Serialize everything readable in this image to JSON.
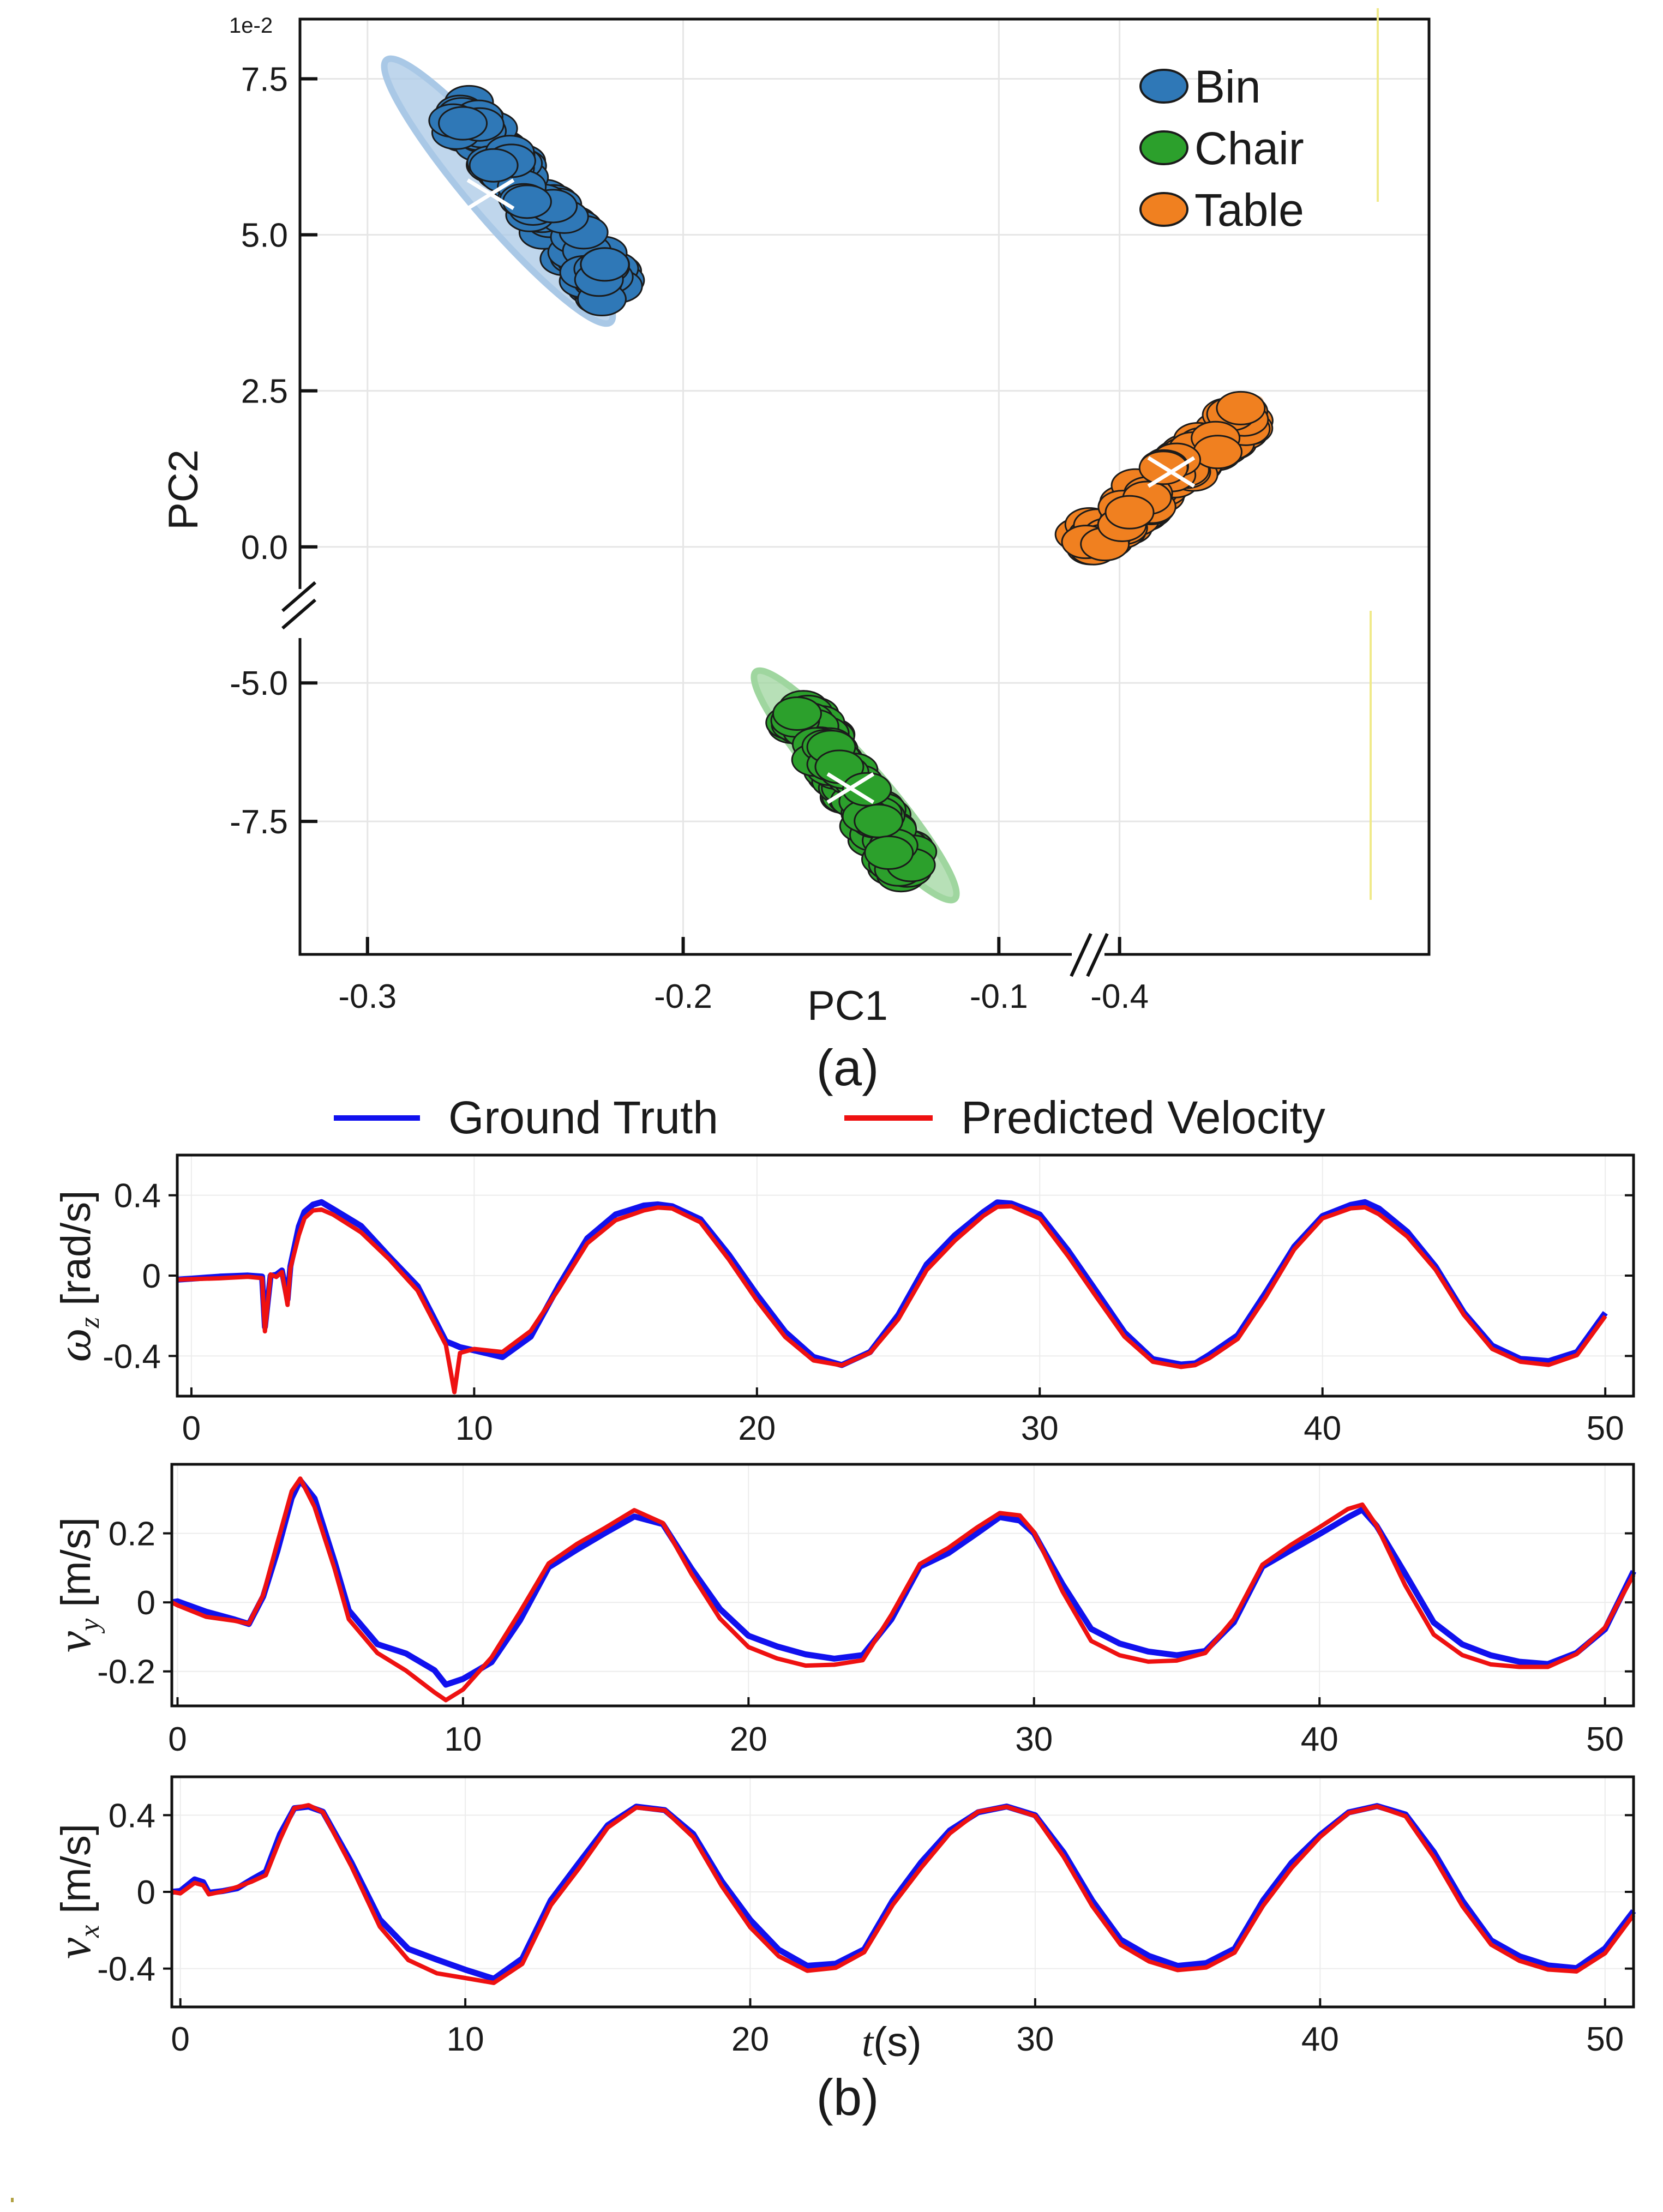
{
  "chart_data": [
    {
      "type": "scatter",
      "panel_label": "(a)",
      "xlabel": "PC1",
      "ylabel": "PC2",
      "y_scale_label": "1e-2",
      "x_axis_break": true,
      "y_axis_break": true,
      "x_segments": [
        {
          "range": [
            -0.32,
            -0.089
          ],
          "ticks": [
            -0.3,
            -0.2,
            -0.1
          ],
          "tick_labels": [
            "-0.3",
            "-0.2",
            "-0.1"
          ]
        },
        {
          "range": [
            -0.41,
            -0.325
          ],
          "ticks": [
            -0.4
          ],
          "tick_labels": [
            "-0.4"
          ]
        }
      ],
      "y_segments": [
        {
          "range": [
            -0.5,
            8.5
          ],
          "ticks": [
            0.0,
            2.5,
            5.0,
            7.5
          ],
          "tick_labels": [
            "0.0",
            "2.5",
            "5.0",
            "7.5"
          ]
        },
        {
          "range": [
            -10.0,
            -3.6
          ],
          "ticks": [
            -7.5,
            -5.0
          ],
          "tick_labels": [
            "-7.5",
            "-5.0"
          ]
        }
      ],
      "grid": true,
      "legend_position": "top-right",
      "series": [
        {
          "name": "Bin",
          "color": "#2f78b7",
          "ellipse_color": "#a9c8e6",
          "x_segment": 0,
          "y_segment": 0,
          "centroid": [
            -0.261,
            5.65
          ],
          "extent_start": [
            -0.272,
            7.0
          ],
          "extent_end": [
            -0.222,
            4.1
          ],
          "ellipse_start": [
            -0.294,
            7.8
          ],
          "ellipse_end": [
            -0.223,
            3.6
          ]
        },
        {
          "name": "Chair",
          "color": "#2ca02c",
          "ellipse_color": "#9fd69f",
          "x_segment": 0,
          "y_segment": 1,
          "centroid": [
            -0.147,
            -6.9
          ],
          "extent_start": [
            -0.164,
            -5.5
          ],
          "extent_end": [
            -0.128,
            -8.4
          ],
          "ellipse_start": [
            -0.177,
            -4.8
          ],
          "ellipse_end": [
            -0.114,
            -8.9
          ]
        },
        {
          "name": "Table",
          "color": "#f08020",
          "ellipse_color": "#f8c49a",
          "x_segment": 1,
          "y_segment": 0,
          "centroid": [
            -0.386,
            1.2
          ],
          "extent_start": [
            -0.409,
            0.05
          ],
          "extent_end": [
            -0.365,
            2.15
          ],
          "ellipse_start": [
            -0.41,
            -0.05
          ],
          "ellipse_end": [
            -0.362,
            2.35
          ]
        }
      ]
    },
    {
      "type": "line",
      "panel_label": "(b)",
      "legend_position": "top",
      "xlabel": "(s)",
      "xlabel_symbol": "t",
      "series_names": [
        "Ground Truth",
        "Predicted Velocity"
      ],
      "series_colors": [
        "#1111ee",
        "#ee1111"
      ],
      "subplots": [
        {
          "ylabel_symbol": "ω",
          "ylabel_sub": "z",
          "ylabel_unit": " [rad/s]",
          "xlim": [
            -0.5,
            51
          ],
          "ylim": [
            -0.6,
            0.6
          ],
          "yticks": [
            -0.4,
            0,
            0.4
          ],
          "ytick_labels": [
            "-0.4",
            "0",
            "0.4"
          ],
          "xticks": [
            0,
            10,
            20,
            30,
            40,
            50
          ],
          "xtick_labels": [
            "0",
            "10",
            "20",
            "30",
            "40",
            "50"
          ],
          "x": [
            -0.5,
            0,
            1,
            2,
            2.5,
            2.6,
            2.8,
            3,
            3.2,
            3.4,
            3.5,
            3.8,
            4,
            4.3,
            4.6,
            5,
            6,
            7,
            8,
            9,
            9.3,
            9.5,
            10,
            11,
            12,
            13,
            14,
            15,
            16,
            16.5,
            17,
            18,
            19,
            20,
            21,
            22,
            23,
            24,
            25,
            26,
            27,
            28,
            28.5,
            29,
            30,
            31,
            32,
            33,
            34,
            35,
            35.5,
            36,
            37,
            38,
            39,
            40,
            41,
            41.5,
            42,
            43,
            44,
            45,
            46,
            47,
            48,
            49,
            50,
            51
          ],
          "series": [
            {
              "name": "Ground Truth",
              "values": [
                -0.02,
                -0.02,
                -0.01,
                0.0,
                0.0,
                -0.25,
                0.0,
                0.0,
                0.02,
                -0.12,
                0.05,
                0.25,
                0.32,
                0.35,
                0.36,
                0.33,
                0.25,
                0.1,
                -0.05,
                -0.33,
                -0.35,
                -0.36,
                -0.37,
                -0.4,
                -0.3,
                -0.05,
                0.18,
                0.3,
                0.35,
                0.36,
                0.35,
                0.28,
                0.1,
                -0.1,
                -0.28,
                -0.4,
                -0.44,
                -0.38,
                -0.2,
                0.05,
                0.2,
                0.32,
                0.37,
                0.36,
                0.3,
                0.12,
                -0.08,
                -0.28,
                -0.41,
                -0.44,
                -0.44,
                -0.4,
                -0.3,
                -0.08,
                0.15,
                0.3,
                0.35,
                0.36,
                0.33,
                0.22,
                0.05,
                -0.18,
                -0.35,
                -0.42,
                -0.43,
                -0.38,
                -0.18
              ]
            },
            {
              "name": "Predicted Velocity",
              "values": [
                -0.02,
                -0.02,
                -0.01,
                0.0,
                -0.01,
                -0.28,
                0.0,
                -0.01,
                0.02,
                -0.14,
                0.04,
                0.2,
                0.28,
                0.32,
                0.33,
                0.31,
                0.22,
                0.08,
                -0.08,
                -0.35,
                -0.58,
                -0.38,
                -0.36,
                -0.38,
                -0.28,
                -0.07,
                0.16,
                0.28,
                0.33,
                0.34,
                0.33,
                0.26,
                0.08,
                -0.12,
                -0.3,
                -0.42,
                -0.45,
                -0.39,
                -0.22,
                0.03,
                0.18,
                0.3,
                0.34,
                0.34,
                0.28,
                0.1,
                -0.1,
                -0.3,
                -0.43,
                -0.46,
                -0.45,
                -0.41,
                -0.31,
                -0.1,
                0.13,
                0.28,
                0.33,
                0.34,
                0.31,
                0.2,
                0.03,
                -0.2,
                -0.37,
                -0.43,
                -0.44,
                -0.39,
                -0.2
              ]
            }
          ]
        },
        {
          "ylabel_symbol": "v",
          "ylabel_sub": "y",
          "ylabel_unit": " [m/s]",
          "xlim": [
            -0.2,
            51
          ],
          "ylim": [
            -0.3,
            0.4
          ],
          "yticks": [
            -0.2,
            0,
            0.2
          ],
          "ytick_labels": [
            "-0.2",
            "0",
            "0.2"
          ],
          "xticks": [
            0,
            10,
            20,
            30,
            40,
            50
          ],
          "xtick_labels": [
            "0",
            "10",
            "20",
            "30",
            "40",
            "50"
          ],
          "x": [
            -0.2,
            0,
            1,
            2,
            2.5,
            3,
            3.5,
            4,
            4.3,
            4.8,
            5.5,
            6,
            7,
            8,
            9,
            9.4,
            10,
            11,
            12,
            13,
            14,
            15,
            16,
            17,
            18,
            19,
            20,
            21,
            22,
            23,
            24,
            25,
            26,
            27,
            28,
            28.8,
            29.5,
            30,
            31,
            32,
            33,
            34,
            35,
            36,
            37,
            38,
            39,
            40,
            41,
            41.5,
            42,
            43,
            44,
            45,
            46,
            47,
            48,
            49,
            50,
            51
          ],
          "series": [
            {
              "name": "Ground Truth",
              "values": [
                0.0,
                0.0,
                -0.03,
                -0.05,
                -0.06,
                0.02,
                0.15,
                0.3,
                0.35,
                0.3,
                0.12,
                -0.02,
                -0.12,
                -0.15,
                -0.2,
                -0.24,
                -0.22,
                -0.17,
                -0.05,
                0.1,
                0.15,
                0.2,
                0.25,
                0.23,
                0.1,
                -0.02,
                -0.1,
                -0.13,
                -0.15,
                -0.16,
                -0.15,
                -0.05,
                0.1,
                0.14,
                0.2,
                0.25,
                0.24,
                0.2,
                0.05,
                -0.08,
                -0.12,
                -0.14,
                -0.15,
                -0.14,
                -0.06,
                0.1,
                0.15,
                0.2,
                0.25,
                0.27,
                0.22,
                0.08,
                -0.06,
                -0.12,
                -0.15,
                -0.17,
                -0.18,
                -0.15,
                -0.08,
                0.09
              ]
            },
            {
              "name": "Predicted Velocity",
              "values": [
                0.0,
                -0.01,
                -0.04,
                -0.05,
                -0.06,
                0.02,
                0.17,
                0.32,
                0.36,
                0.28,
                0.1,
                -0.05,
                -0.15,
                -0.2,
                -0.26,
                -0.28,
                -0.25,
                -0.16,
                -0.03,
                0.11,
                0.17,
                0.22,
                0.27,
                0.23,
                0.08,
                -0.05,
                -0.13,
                -0.16,
                -0.18,
                -0.18,
                -0.17,
                -0.04,
                0.11,
                0.16,
                0.22,
                0.26,
                0.25,
                0.2,
                0.03,
                -0.11,
                -0.15,
                -0.17,
                -0.17,
                -0.15,
                -0.05,
                0.11,
                0.17,
                0.22,
                0.27,
                0.28,
                0.22,
                0.05,
                -0.09,
                -0.15,
                -0.18,
                -0.19,
                -0.19,
                -0.15,
                -0.07,
                0.08
              ]
            }
          ]
        },
        {
          "ylabel_symbol": "v",
          "ylabel_sub": "x",
          "ylabel_unit": " [m/s]",
          "xlim": [
            -0.3,
            51
          ],
          "ylim": [
            -0.6,
            0.6
          ],
          "yticks": [
            -0.4,
            0,
            0.4
          ],
          "ytick_labels": [
            "-0.4",
            "0",
            "0.4"
          ],
          "xticks": [
            0,
            10,
            20,
            30,
            40,
            50
          ],
          "xtick_labels": [
            "0",
            "10",
            "20",
            "30",
            "40",
            "50"
          ],
          "x": [
            -0.3,
            0,
            0.5,
            0.8,
            1,
            1.5,
            2,
            2.5,
            3,
            3.5,
            4,
            4.5,
            5,
            6,
            7,
            8,
            9,
            10,
            11,
            12,
            13,
            14,
            15,
            16,
            17,
            18,
            19,
            20,
            21,
            22,
            23,
            24,
            25,
            26,
            27,
            28,
            29,
            30,
            31,
            32,
            33,
            34,
            35,
            36,
            37,
            38,
            39,
            40,
            41,
            42,
            43,
            44,
            45,
            46,
            47,
            48,
            49,
            50,
            51
          ],
          "series": [
            {
              "name": "Ground Truth",
              "values": [
                0.0,
                0.0,
                0.06,
                0.05,
                0.0,
                0.01,
                0.02,
                0.06,
                0.1,
                0.3,
                0.44,
                0.45,
                0.42,
                0.15,
                -0.15,
                -0.3,
                -0.35,
                -0.4,
                -0.45,
                -0.35,
                -0.05,
                0.15,
                0.35,
                0.45,
                0.43,
                0.3,
                0.05,
                -0.15,
                -0.3,
                -0.38,
                -0.37,
                -0.3,
                -0.05,
                0.15,
                0.32,
                0.42,
                0.45,
                0.4,
                0.2,
                -0.05,
                -0.25,
                -0.33,
                -0.38,
                -0.37,
                -0.3,
                -0.05,
                0.15,
                0.3,
                0.42,
                0.45,
                0.4,
                0.2,
                -0.05,
                -0.25,
                -0.33,
                -0.38,
                -0.4,
                -0.3,
                -0.1
              ]
            },
            {
              "name": "Predicted Velocity",
              "values": [
                0.0,
                -0.01,
                0.05,
                0.04,
                -0.01,
                0.0,
                0.02,
                0.05,
                0.09,
                0.28,
                0.44,
                0.45,
                0.41,
                0.13,
                -0.18,
                -0.35,
                -0.42,
                -0.45,
                -0.48,
                -0.38,
                -0.07,
                0.13,
                0.34,
                0.44,
                0.42,
                0.28,
                0.03,
                -0.18,
                -0.33,
                -0.41,
                -0.4,
                -0.32,
                -0.07,
                0.13,
                0.31,
                0.42,
                0.44,
                0.39,
                0.18,
                -0.07,
                -0.27,
                -0.36,
                -0.41,
                -0.4,
                -0.32,
                -0.07,
                0.13,
                0.29,
                0.41,
                0.44,
                0.39,
                0.18,
                -0.07,
                -0.27,
                -0.36,
                -0.41,
                -0.42,
                -0.32,
                -0.12
              ]
            }
          ]
        }
      ]
    }
  ]
}
